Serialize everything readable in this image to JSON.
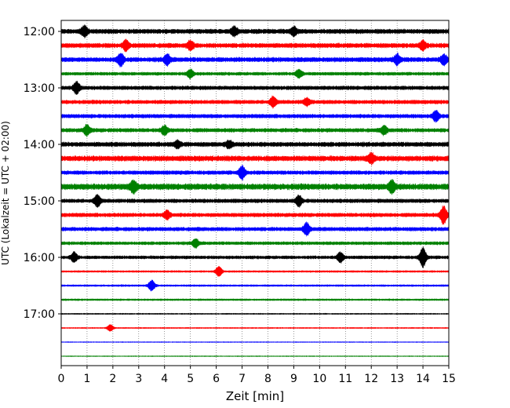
{
  "chart_data": {
    "type": "line",
    "title": "",
    "xlabel": "Zeit  [min]",
    "ylabel": "UTC (Lokalzeit = UTC + 02:00)",
    "xlim": [
      0,
      15
    ],
    "x_ticks": [
      "0",
      "1",
      "2",
      "3",
      "4",
      "5",
      "6",
      "7",
      "8",
      "9",
      "10",
      "11",
      "12",
      "13",
      "14",
      "15"
    ],
    "y_ticks": [
      {
        "label": "12:00",
        "trace": 0
      },
      {
        "label": "13:00",
        "trace": 4
      },
      {
        "label": "14:00",
        "trace": 8
      },
      {
        "label": "15:00",
        "trace": 12
      },
      {
        "label": "16:00",
        "trace": 16
      },
      {
        "label": "17:00",
        "trace": 20
      }
    ],
    "vertical_grid": "dotted",
    "trace_interval_minutes": 15,
    "colors": [
      "#000000",
      "#ff0000",
      "#0000ff",
      "#008000"
    ],
    "traces": [
      {
        "start": "12:00",
        "noise": 3.5,
        "events": [
          [
            0.9,
            6
          ],
          [
            9.0,
            5
          ],
          [
            6.7,
            5
          ]
        ]
      },
      {
        "start": "12:15",
        "noise": 3.5,
        "events": [
          [
            2.5,
            6
          ],
          [
            5.0,
            5
          ],
          [
            14.0,
            5
          ]
        ]
      },
      {
        "start": "12:30",
        "noise": 3.5,
        "events": [
          [
            2.3,
            7
          ],
          [
            4.1,
            6
          ],
          [
            13.0,
            6
          ],
          [
            14.8,
            6
          ]
        ]
      },
      {
        "start": "12:45",
        "noise": 2.5,
        "events": [
          [
            5.0,
            5
          ],
          [
            9.2,
            5
          ]
        ]
      },
      {
        "start": "13:00",
        "noise": 3.0,
        "events": [
          [
            0.6,
            7
          ]
        ]
      },
      {
        "start": "13:15",
        "noise": 3.0,
        "events": [
          [
            8.2,
            6
          ],
          [
            9.5,
            4
          ]
        ]
      },
      {
        "start": "13:30",
        "noise": 3.0,
        "events": [
          [
            14.5,
            6
          ]
        ]
      },
      {
        "start": "13:45",
        "noise": 3.0,
        "events": [
          [
            1.0,
            6
          ],
          [
            4.0,
            5
          ],
          [
            12.5,
            5
          ]
        ]
      },
      {
        "start": "14:00",
        "noise": 3.5,
        "events": [
          [
            4.5,
            4
          ],
          [
            6.5,
            4
          ]
        ]
      },
      {
        "start": "14:15",
        "noise": 4.0,
        "events": [
          [
            12.0,
            6
          ]
        ]
      },
      {
        "start": "14:30",
        "noise": 3.0,
        "events": [
          [
            7.0,
            8
          ]
        ]
      },
      {
        "start": "14:45",
        "noise": 4.5,
        "events": [
          [
            2.8,
            7
          ],
          [
            12.8,
            7
          ]
        ]
      },
      {
        "start": "15:00",
        "noise": 3.0,
        "events": [
          [
            1.4,
            7
          ],
          [
            9.2,
            6
          ]
        ]
      },
      {
        "start": "15:15",
        "noise": 3.0,
        "events": [
          [
            4.1,
            5
          ],
          [
            14.8,
            11
          ]
        ]
      },
      {
        "start": "15:30",
        "noise": 3.0,
        "events": [
          [
            9.5,
            7
          ]
        ]
      },
      {
        "start": "15:45",
        "noise": 2.5,
        "events": [
          [
            5.2,
            5
          ]
        ]
      },
      {
        "start": "16:00",
        "noise": 2.5,
        "events": [
          [
            0.5,
            6
          ],
          [
            10.8,
            6
          ],
          [
            14.0,
            12
          ]
        ]
      },
      {
        "start": "16:15",
        "noise": 1.5,
        "events": [
          [
            6.1,
            6
          ]
        ]
      },
      {
        "start": "16:30",
        "noise": 1.5,
        "events": [
          [
            3.5,
            7
          ]
        ]
      },
      {
        "start": "16:45",
        "noise": 1.5,
        "events": []
      },
      {
        "start": "17:00",
        "noise": 1.0,
        "events": []
      },
      {
        "start": "17:15",
        "noise": 1.0,
        "events": [
          [
            1.9,
            4
          ]
        ]
      },
      {
        "start": "17:30",
        "noise": 0.7,
        "events": []
      },
      {
        "start": "17:45",
        "noise": 0.7,
        "events": []
      }
    ]
  }
}
